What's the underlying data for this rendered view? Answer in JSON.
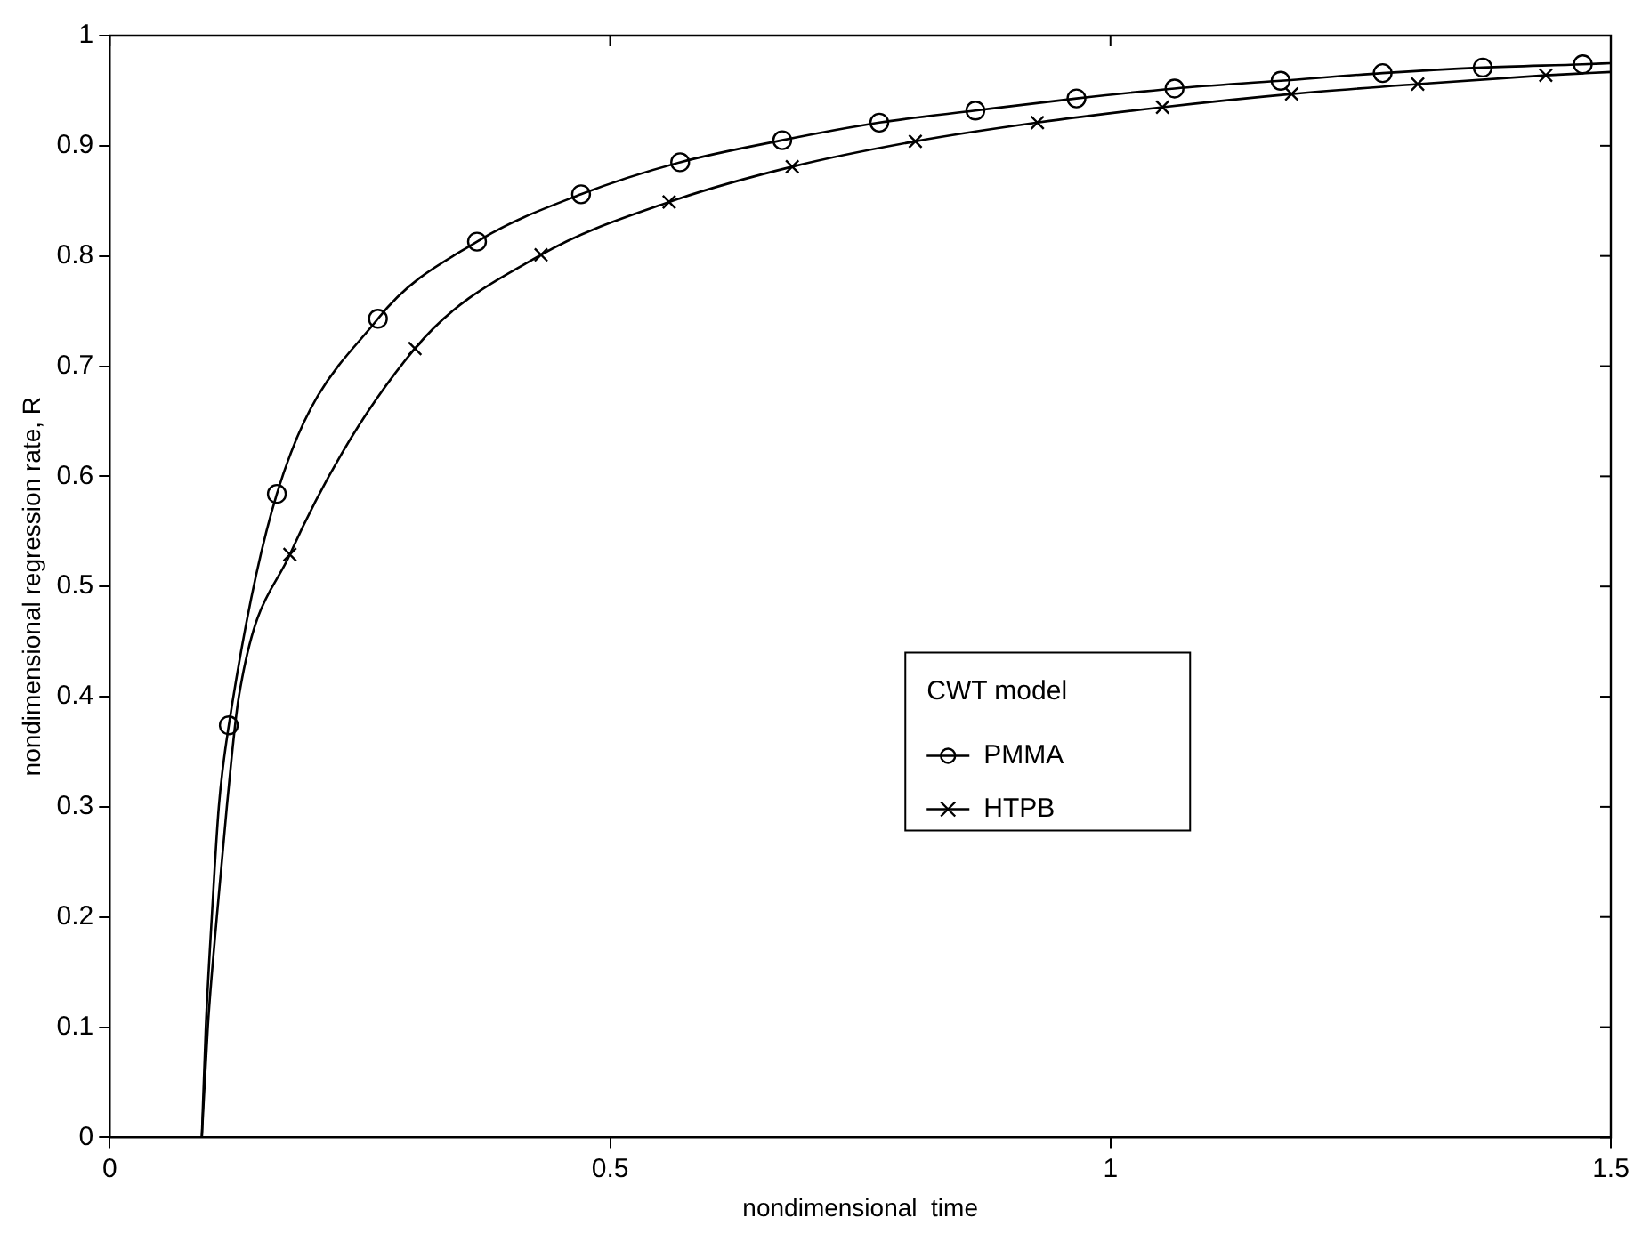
{
  "chart_data": {
    "type": "line",
    "xlabel": "nondimensional  time",
    "ylabel": "nondimensional regression rate, R",
    "legend_title": "CWT model",
    "legend": "center right",
    "grid": false,
    "xlim": [
      0,
      1.5
    ],
    "xticks": [
      0,
      0.5,
      1,
      1.5
    ],
    "ylim": [
      0,
      1
    ],
    "yticks": [
      0,
      0.1,
      0.2,
      0.3,
      0.4,
      0.5,
      0.6,
      0.7,
      0.8,
      0.9,
      1
    ],
    "series": [
      {
        "type": "line",
        "marker": "none",
        "color": "#000000",
        "x": [
          0.092,
          0.096,
          0.102,
          0.109,
          0.119,
          0.167,
          0.268,
          0.367,
          0.471,
          0.57,
          0.672,
          0.769,
          0.865,
          0.966,
          1.064,
          1.17,
          1.272,
          1.372,
          1.472,
          1.5
        ],
        "values": [
          0,
          0.1,
          0.2,
          0.3,
          0.374,
          0.584,
          0.743,
          0.813,
          0.856,
          0.885,
          0.905,
          0.921,
          0.932,
          0.943,
          0.952,
          0.959,
          0.966,
          0.971,
          0.974,
          0.975
        ]
      },
      {
        "type": "line",
        "marker": "none",
        "color": "#000000",
        "x": [
          0.092,
          0.098,
          0.107,
          0.117,
          0.129,
          0.18,
          0.305,
          0.431,
          0.559,
          0.682,
          0.805,
          0.927,
          1.052,
          1.181,
          1.307,
          1.435,
          1.5
        ],
        "values": [
          0,
          0.1,
          0.2,
          0.3,
          0.4,
          0.529,
          0.716,
          0.801,
          0.849,
          0.881,
          0.904,
          0.921,
          0.935,
          0.947,
          0.956,
          0.964,
          0.967
        ]
      },
      {
        "type": "scatter",
        "name": "PMMA",
        "marker": "circle",
        "color": "#000000",
        "x": [
          0.119,
          0.167,
          0.268,
          0.367,
          0.471,
          0.57,
          0.672,
          0.769,
          0.865,
          0.966,
          1.064,
          1.17,
          1.272,
          1.372,
          1.472
        ],
        "values": [
          0.374,
          0.584,
          0.743,
          0.813,
          0.856,
          0.885,
          0.905,
          0.921,
          0.932,
          0.943,
          0.952,
          0.959,
          0.966,
          0.971,
          0.974
        ]
      },
      {
        "type": "scatter",
        "name": "HTPB",
        "marker": "cross",
        "color": "#000000",
        "x": [
          0.18,
          0.305,
          0.431,
          0.559,
          0.682,
          0.805,
          0.927,
          1.052,
          1.181,
          1.307,
          1.435
        ],
        "values": [
          0.529,
          0.716,
          0.801,
          0.849,
          0.881,
          0.904,
          0.921,
          0.935,
          0.947,
          0.956,
          0.964
        ]
      }
    ]
  }
}
